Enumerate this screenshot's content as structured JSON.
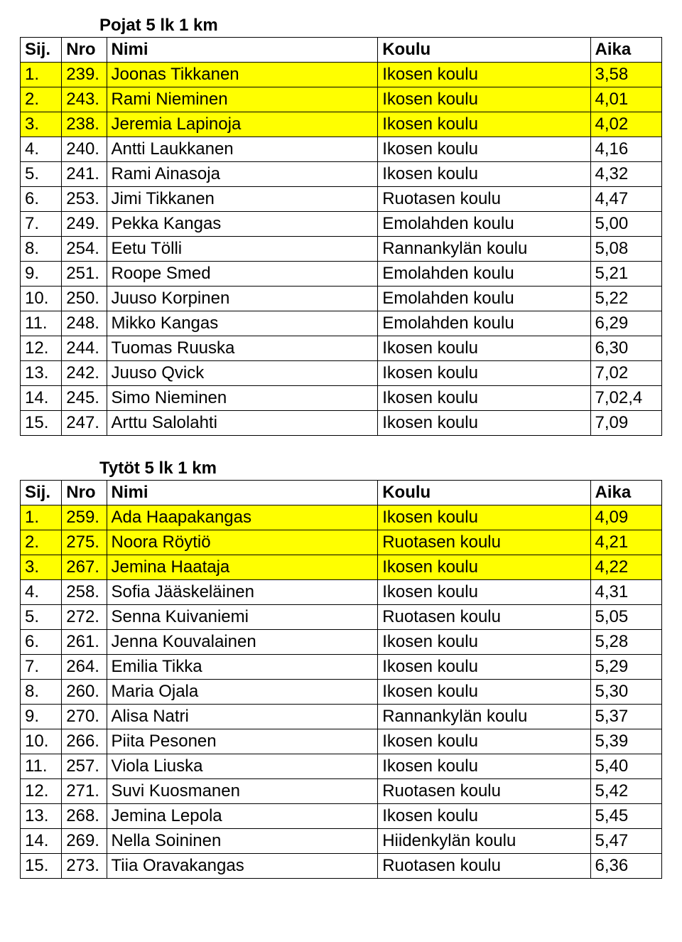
{
  "sections": [
    {
      "title": "Pojat 5 lk  1 km",
      "headers": {
        "sij": "Sij.",
        "nro": "Nro",
        "nimi": "Nimi",
        "koulu": "Koulu",
        "aika": "Aika"
      },
      "highlight_color": "#ffff00",
      "rows": [
        {
          "sij": "1.",
          "nro": "239.",
          "nimi": "Joonas Tikkanen",
          "koulu": "Ikosen koulu",
          "aika": "3,58",
          "hl": true
        },
        {
          "sij": "2.",
          "nro": "243.",
          "nimi": "Rami Nieminen",
          "koulu": "Ikosen koulu",
          "aika": "4,01",
          "hl": true
        },
        {
          "sij": "3.",
          "nro": "238.",
          "nimi": "Jeremia Lapinoja",
          "koulu": "Ikosen koulu",
          "aika": "4,02",
          "hl": true
        },
        {
          "sij": "4.",
          "nro": "240.",
          "nimi": "Antti Laukkanen",
          "koulu": "Ikosen koulu",
          "aika": "4,16",
          "hl": false
        },
        {
          "sij": "5.",
          "nro": "241.",
          "nimi": "Rami Ainasoja",
          "koulu": "Ikosen koulu",
          "aika": "4,32",
          "hl": false
        },
        {
          "sij": "6.",
          "nro": "253.",
          "nimi": "Jimi Tikkanen",
          "koulu": "Ruotasen koulu",
          "aika": "4,47",
          "hl": false
        },
        {
          "sij": "7.",
          "nro": "249.",
          "nimi": "Pekka Kangas",
          "koulu": "Emolahden koulu",
          "aika": "5,00",
          "hl": false
        },
        {
          "sij": "8.",
          "nro": "254.",
          "nimi": "Eetu Tölli",
          "koulu": "Rannankylän koulu",
          "aika": "5,08",
          "hl": false
        },
        {
          "sij": "9.",
          "nro": "251.",
          "nimi": "Roope Smed",
          "koulu": "Emolahden koulu",
          "aika": "5,21",
          "hl": false
        },
        {
          "sij": "10.",
          "nro": "250.",
          "nimi": "Juuso Korpinen",
          "koulu": "Emolahden koulu",
          "aika": "5,22",
          "hl": false
        },
        {
          "sij": "11.",
          "nro": "248.",
          "nimi": "Mikko Kangas",
          "koulu": "Emolahden koulu",
          "aika": "6,29",
          "hl": false
        },
        {
          "sij": "12.",
          "nro": "244.",
          "nimi": "Tuomas Ruuska",
          "koulu": "Ikosen koulu",
          "aika": "6,30",
          "hl": false
        },
        {
          "sij": "13.",
          "nro": "242.",
          "nimi": "Juuso Qvick",
          "koulu": "Ikosen koulu",
          "aika": "7,02",
          "hl": false
        },
        {
          "sij": "14.",
          "nro": "245.",
          "nimi": "Simo Nieminen",
          "koulu": "Ikosen koulu",
          "aika": "7,02,4",
          "hl": false
        },
        {
          "sij": "15.",
          "nro": "247.",
          "nimi": "Arttu Salolahti",
          "koulu": "Ikosen koulu",
          "aika": "7,09",
          "hl": false
        }
      ]
    },
    {
      "title": "Tytöt 5 lk  1 km",
      "headers": {
        "sij": "Sij.",
        "nro": "Nro",
        "nimi": "Nimi",
        "koulu": "Koulu",
        "aika": "Aika"
      },
      "highlight_color": "#ffff00",
      "rows": [
        {
          "sij": "1.",
          "nro": "259.",
          "nimi": "Ada Haapakangas",
          "koulu": "Ikosen koulu",
          "aika": "4,09",
          "hl": true
        },
        {
          "sij": "2.",
          "nro": "275.",
          "nimi": "Noora Röytiö",
          "koulu": "Ruotasen koulu",
          "aika": "4,21",
          "hl": true
        },
        {
          "sij": "3.",
          "nro": "267.",
          "nimi": "Jemina Haataja",
          "koulu": "Ikosen koulu",
          "aika": "4,22",
          "hl": true
        },
        {
          "sij": "4.",
          "nro": "258.",
          "nimi": "Sofia Jääskeläinen",
          "koulu": "Ikosen koulu",
          "aika": "4,31",
          "hl": false
        },
        {
          "sij": "5.",
          "nro": "272.",
          "nimi": "Senna Kuivaniemi",
          "koulu": "Ruotasen koulu",
          "aika": "5,05",
          "hl": false
        },
        {
          "sij": "6.",
          "nro": "261.",
          "nimi": "Jenna Kouvalainen",
          "koulu": "Ikosen koulu",
          "aika": "5,28",
          "hl": false
        },
        {
          "sij": "7.",
          "nro": "264.",
          "nimi": "Emilia Tikka",
          "koulu": "Ikosen koulu",
          "aika": "5,29",
          "hl": false
        },
        {
          "sij": "8.",
          "nro": "260.",
          "nimi": "Maria Ojala",
          "koulu": "Ikosen koulu",
          "aika": "5,30",
          "hl": false
        },
        {
          "sij": "9.",
          "nro": "270.",
          "nimi": "Alisa Natri",
          "koulu": "Rannankylän koulu",
          "aika": "5,37",
          "hl": false
        },
        {
          "sij": "10.",
          "nro": "266.",
          "nimi": "Piita Pesonen",
          "koulu": "Ikosen koulu",
          "aika": "5,39",
          "hl": false
        },
        {
          "sij": "11.",
          "nro": "257.",
          "nimi": "Viola Liuska",
          "koulu": "Ikosen koulu",
          "aika": "5,40",
          "hl": false
        },
        {
          "sij": "12.",
          "nro": "271.",
          "nimi": "Suvi Kuosmanen",
          "koulu": "Ruotasen koulu",
          "aika": "5,42",
          "hl": false
        },
        {
          "sij": "13.",
          "nro": "268.",
          "nimi": "Jemina Lepola",
          "koulu": "Ikosen koulu",
          "aika": "5,45",
          "hl": false
        },
        {
          "sij": "14.",
          "nro": "269.",
          "nimi": "Nella Soininen",
          "koulu": "Hiidenkylän koulu",
          "aika": "5,47",
          "hl": false
        },
        {
          "sij": "15.",
          "nro": "273.",
          "nimi": "Tiia Oravakangas",
          "koulu": "Ruotasen koulu",
          "aika": "6,36",
          "hl": false
        }
      ]
    }
  ]
}
